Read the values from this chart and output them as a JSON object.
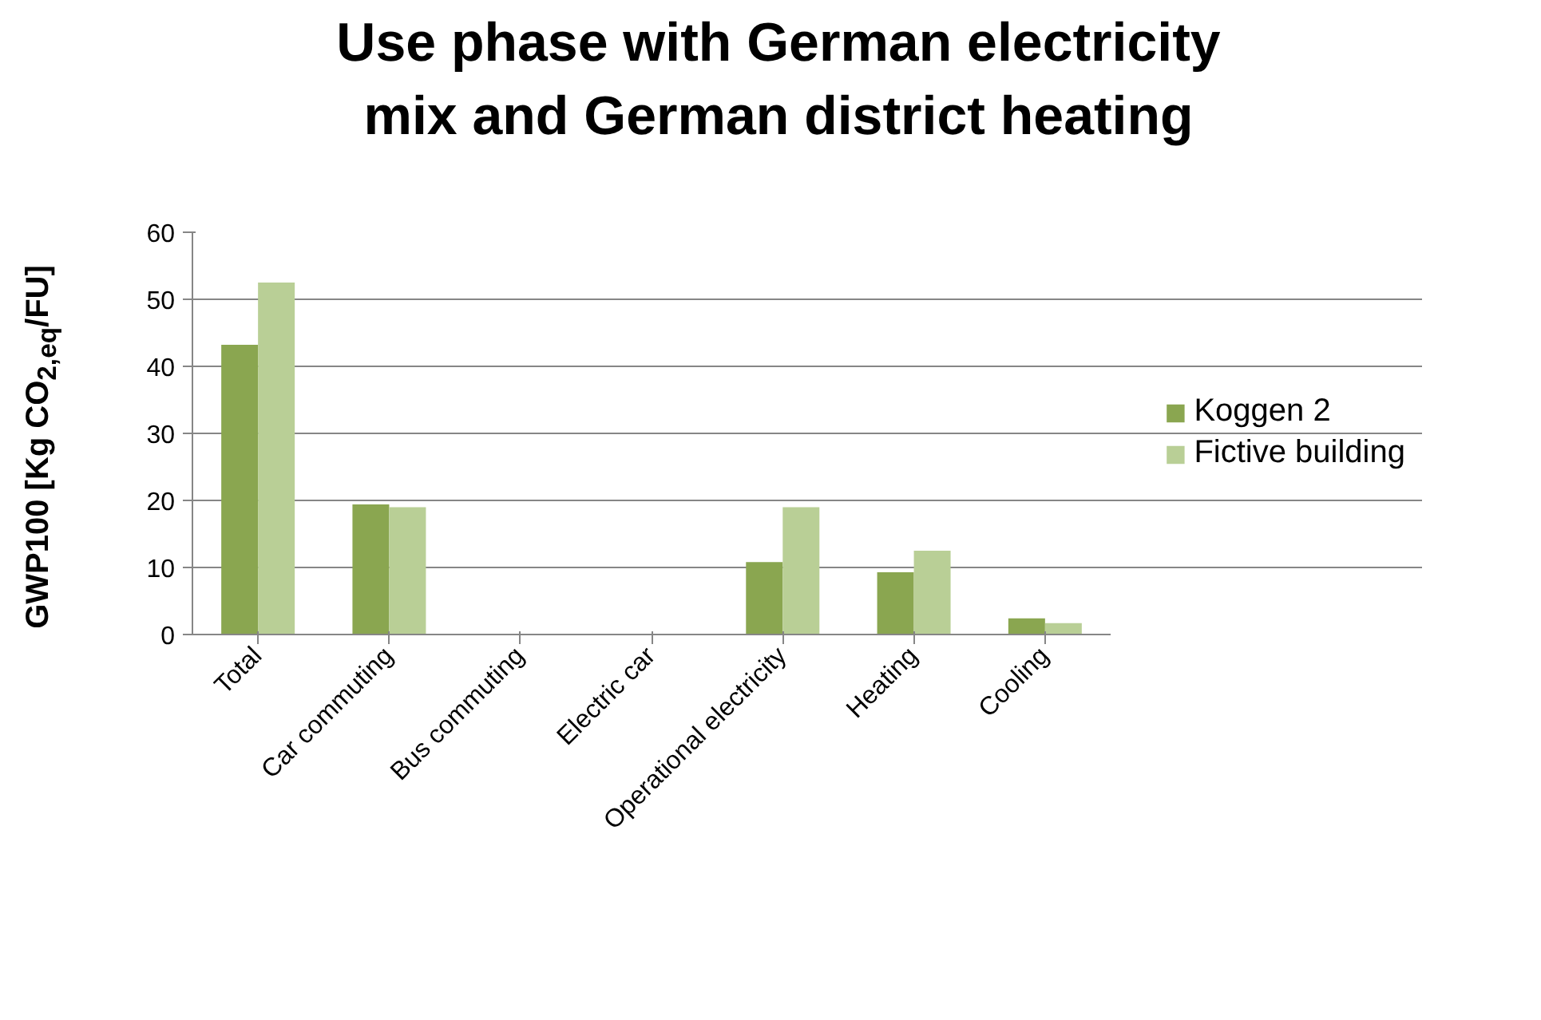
{
  "chart_data": {
    "type": "bar",
    "title": "Use phase with German electricity\nmix and German district heating",
    "ylabel": "GWP100 [Kg CO$_{2,eq}$/FU]",
    "categories": [
      "Total",
      "Car commuting",
      "Bus commuting",
      "Electric car",
      "Operational electricity",
      "Heating",
      "Cooling"
    ],
    "series": [
      {
        "name": "Koggen 2",
        "color": "#8aa650",
        "values": [
          43.2,
          19.4,
          0,
          0,
          10.8,
          9.3,
          2.4
        ]
      },
      {
        "name": "Fictive building",
        "color": "#b9cf96",
        "values": [
          52.5,
          19.0,
          0,
          0,
          19.0,
          12.5,
          1.7
        ]
      }
    ],
    "ylim": [
      0,
      60
    ],
    "yticks": [
      0,
      10,
      20,
      30,
      40,
      50,
      60
    ],
    "grid": "y",
    "legend": "right"
  }
}
